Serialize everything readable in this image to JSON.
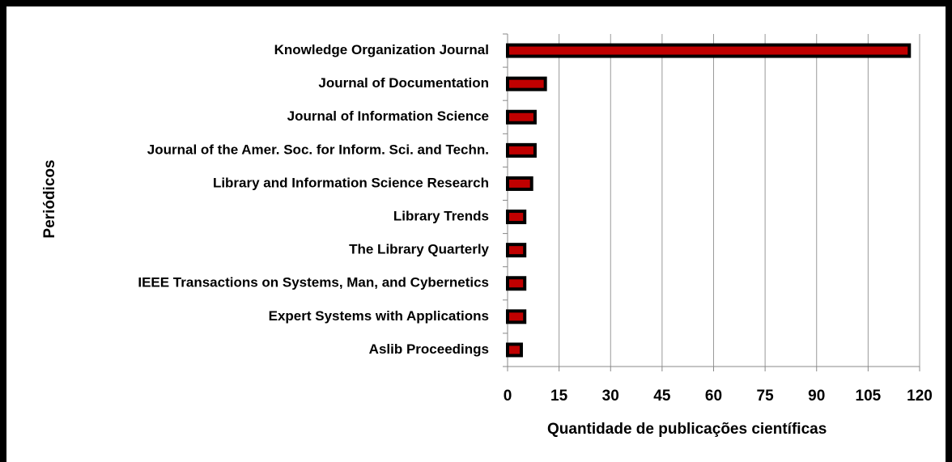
{
  "chart_data": {
    "type": "barh",
    "categories": [
      "Knowledge Organization Journal",
      "Journal of Documentation",
      "Journal of Information Science",
      "Journal of the Amer. Soc. for Inform. Sci. and Techn.",
      "Library and Information Science Research",
      "Library Trends",
      "The Library Quarterly",
      "IEEE Transactions on Systems, Man, and Cybernetics",
      "Expert Systems with Applications",
      "Aslib Proceedings"
    ],
    "values": [
      117,
      11,
      8,
      8,
      7,
      5,
      5,
      5,
      5,
      4
    ],
    "color": "#c00000",
    "x_label": "Quantidade de publicações científicas",
    "y_label": "Periódicos",
    "xlim": [
      0,
      120
    ],
    "xticks": [
      0,
      15,
      30,
      45,
      60,
      75,
      90,
      105,
      120
    ],
    "grid": true
  }
}
